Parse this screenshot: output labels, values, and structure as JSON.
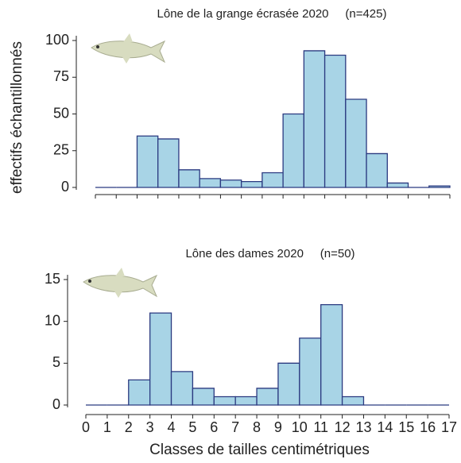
{
  "chart_data": [
    {
      "type": "histogram",
      "title": "Lône de la grange écrasée 2020     (n=425)",
      "ylabel": "effectifs échantillonnés",
      "bins": [
        0,
        1,
        2,
        3,
        4,
        5,
        6,
        7,
        8,
        9,
        10,
        11,
        12,
        13,
        14,
        15,
        16,
        17
      ],
      "values": [
        0,
        0,
        35,
        33,
        12,
        6,
        5,
        4,
        10,
        50,
        93,
        90,
        60,
        23,
        3,
        0,
        1
      ],
      "color": "#a8d4e6",
      "edgecolor": "#2b3a80",
      "xlim": [
        0,
        17
      ],
      "ylim": [
        0,
        100
      ],
      "yticks": [
        0,
        25,
        50,
        75,
        100
      ]
    },
    {
      "type": "histogram",
      "title": "Lône des dames 2020     (n=50)",
      "xlabel": "Classes de tailles centimétriques",
      "bins": [
        0,
        1,
        2,
        3,
        4,
        5,
        6,
        7,
        8,
        9,
        10,
        11,
        12,
        13,
        14,
        15,
        16,
        17
      ],
      "values": [
        0,
        0,
        3,
        11,
        4,
        2,
        1,
        1,
        2,
        5,
        8,
        12,
        1,
        0,
        0,
        0,
        0
      ],
      "color": "#a8d4e6",
      "edgecolor": "#2b3a80",
      "xlim": [
        0,
        17
      ],
      "ylim": [
        0,
        15
      ],
      "yticks": [
        0,
        5,
        10,
        15
      ],
      "xticks": [
        0,
        1,
        2,
        3,
        4,
        5,
        6,
        7,
        8,
        9,
        10,
        11,
        12,
        13,
        14,
        15,
        16,
        17
      ]
    }
  ]
}
